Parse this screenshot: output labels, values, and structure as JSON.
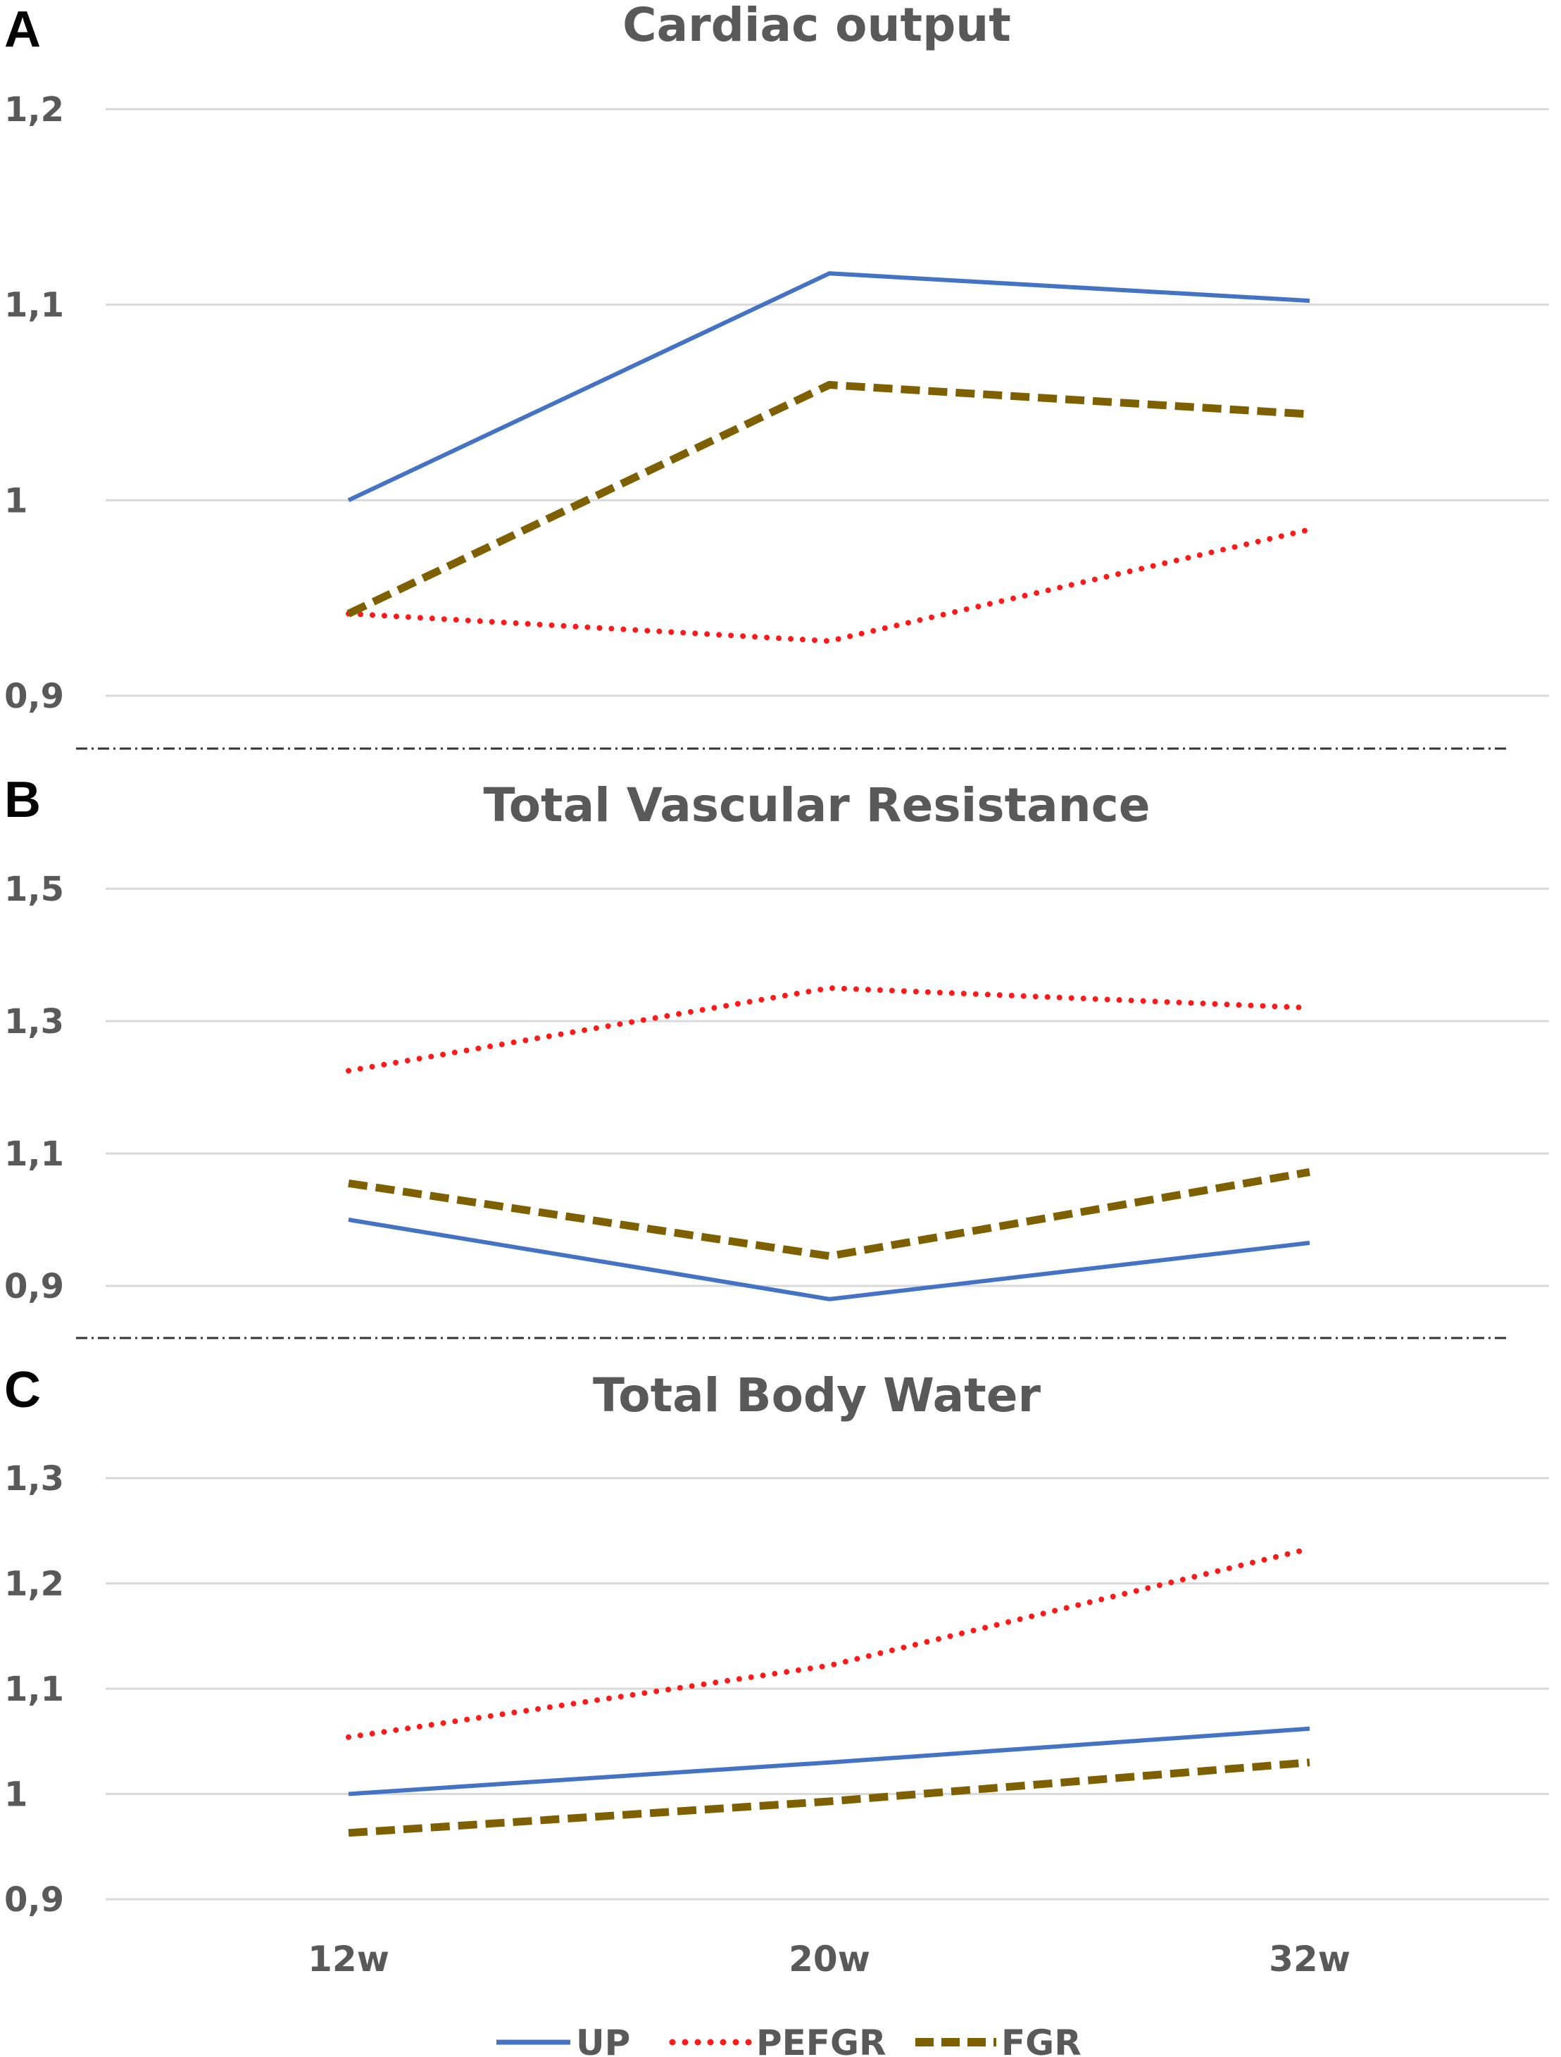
{
  "colors": {
    "UP": "#4472c4",
    "PEFGR": "#ff1a1a",
    "FGR": "#7f6000"
  },
  "legend": [
    "UP",
    "PEFGR",
    "FGR"
  ],
  "chart_data": [
    {
      "panel": "A",
      "type": "line",
      "title": "Cardiac output",
      "categories": [
        "12w",
        "20w",
        "32w"
      ],
      "ylim": [
        0.9,
        1.2
      ],
      "yticks": [
        0.9,
        1.0,
        1.1,
        1.2
      ],
      "ytick_labels": [
        "0,9",
        "1",
        "1,1",
        "1,2"
      ],
      "series": [
        {
          "name": "UP",
          "values": [
            1.0,
            1.116,
            1.102
          ]
        },
        {
          "name": "PEFGR",
          "values": [
            0.942,
            0.928,
            0.985
          ]
        },
        {
          "name": "FGR",
          "values": [
            0.942,
            1.059,
            1.044
          ]
        }
      ]
    },
    {
      "panel": "B",
      "type": "line",
      "title": "Total Vascular Resistance",
      "categories": [
        "12w",
        "20w",
        "32w"
      ],
      "ylim": [
        0.9,
        1.5
      ],
      "yticks": [
        0.9,
        1.1,
        1.3,
        1.5
      ],
      "ytick_labels": [
        "0,9",
        "1,1",
        "1,3",
        "1,5"
      ],
      "series": [
        {
          "name": "UP",
          "values": [
            1.0,
            0.88,
            0.965
          ]
        },
        {
          "name": "PEFGR",
          "values": [
            1.225,
            1.35,
            1.32
          ]
        },
        {
          "name": "FGR",
          "values": [
            1.055,
            0.945,
            1.072
          ]
        }
      ]
    },
    {
      "panel": "C",
      "type": "line",
      "title": "Total Body Water",
      "categories": [
        "12w",
        "20w",
        "32w"
      ],
      "ylim": [
        0.9,
        1.3
      ],
      "yticks": [
        0.9,
        1.0,
        1.1,
        1.2,
        1.3
      ],
      "ytick_labels": [
        "0,9",
        "1",
        "1,1",
        "1,2",
        "1,3"
      ],
      "series": [
        {
          "name": "UP",
          "values": [
            1.0,
            1.03,
            1.062
          ]
        },
        {
          "name": "PEFGR",
          "values": [
            1.054,
            1.122,
            1.233
          ]
        },
        {
          "name": "FGR",
          "values": [
            0.963,
            0.993,
            1.03
          ]
        }
      ]
    }
  ]
}
